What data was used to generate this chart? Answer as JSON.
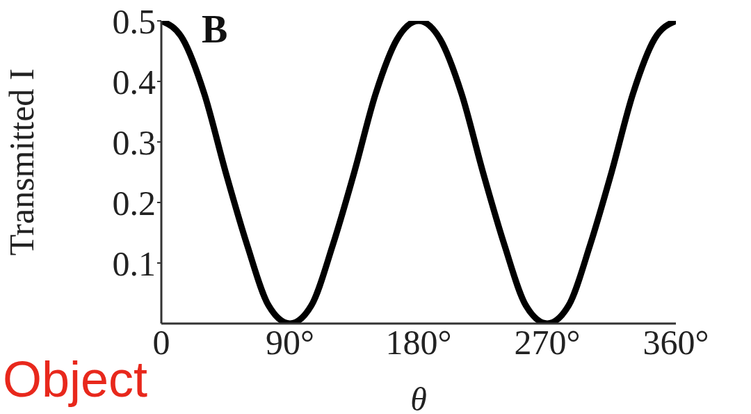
{
  "chart_data": {
    "type": "line",
    "xlabel": "θ",
    "ylabel": "Transmitted I",
    "annotations": [
      "B",
      "Object"
    ],
    "x": [
      0,
      15,
      30,
      45,
      60,
      75,
      90,
      105,
      120,
      135,
      150,
      165,
      180,
      195,
      210,
      225,
      240,
      255,
      270,
      285,
      300,
      315,
      330,
      345,
      360
    ],
    "series": [
      {
        "color": "#000000",
        "values": [
          0.5,
          0.47,
          0.38,
          0.25,
          0.13,
          0.03,
          0,
          0.03,
          0.13,
          0.25,
          0.38,
          0.47,
          0.5,
          0.47,
          0.38,
          0.25,
          0.13,
          0.03,
          0,
          0.03,
          0.13,
          0.25,
          0.38,
          0.47,
          0.5
        ]
      }
    ],
    "xlim": [
      0,
      360
    ],
    "xticks": [
      {
        "value": 0,
        "label": "0"
      },
      {
        "value": 90,
        "label": "90°"
      },
      {
        "value": 180,
        "label": "180°"
      },
      {
        "value": 270,
        "label": "270°"
      },
      {
        "value": 360,
        "label": "360°"
      }
    ],
    "ylim": [
      0,
      0.5
    ],
    "yticks": [
      0.1,
      0.2,
      0.3,
      0.4,
      0.5
    ],
    "grid": false,
    "legend": false,
    "marker": "none",
    "line_style": "solid"
  }
}
